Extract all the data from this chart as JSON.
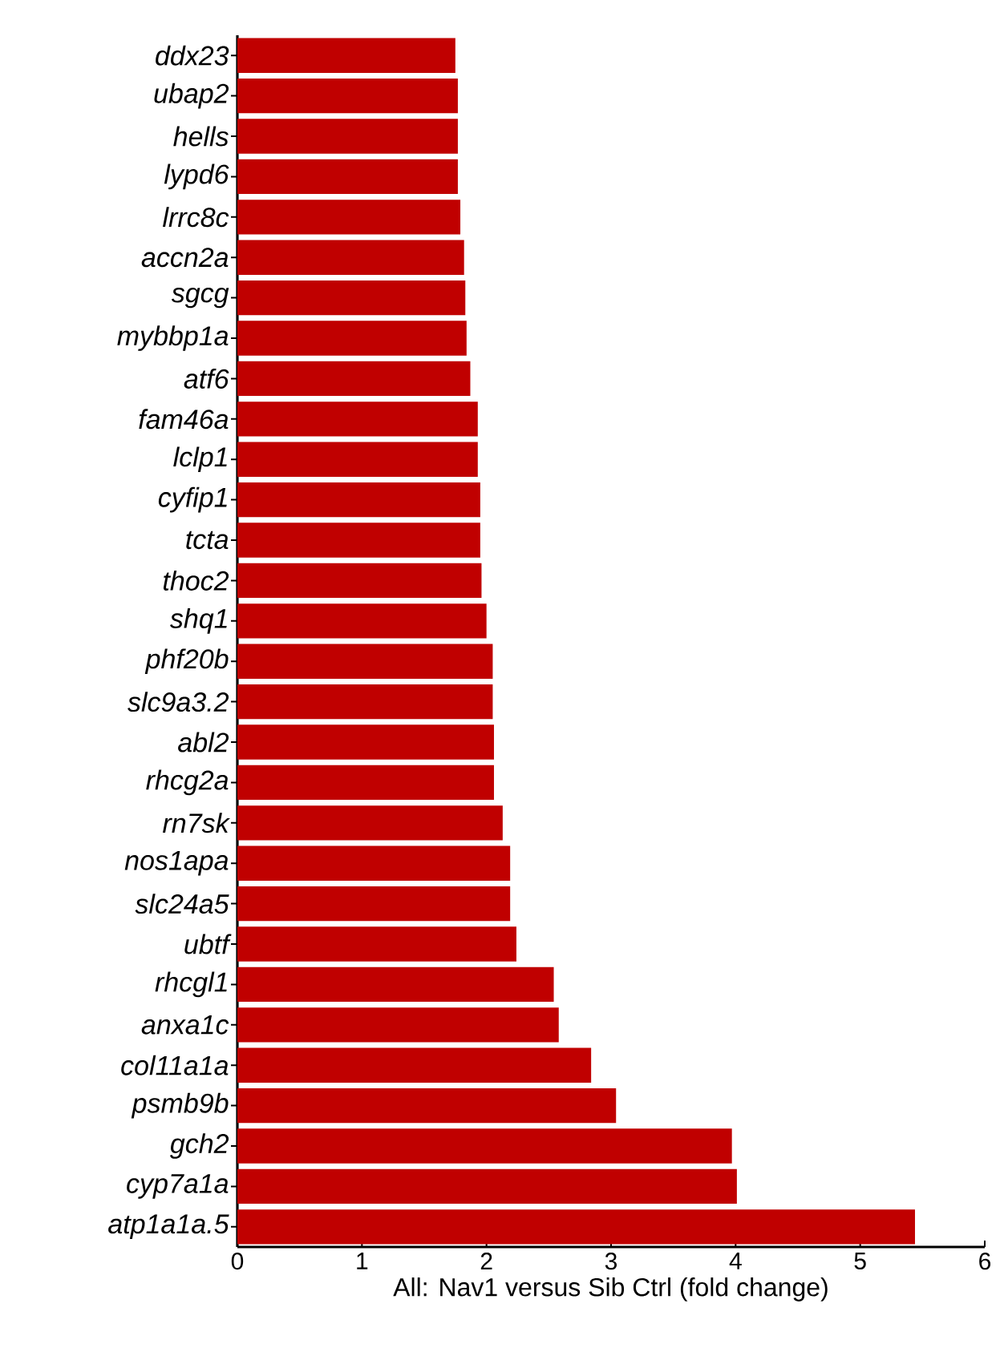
{
  "chart_data": {
    "type": "bar",
    "orientation": "horizontal",
    "xlabel": "All: Nav1 versus Sib Ctrl (fold change)",
    "categories": [
      "ddx23",
      "ubap2",
      "hells",
      "lypd6",
      "lrrc8c",
      "accn2a",
      "sgcg",
      "mybbp1a",
      "atf6",
      "fam46a",
      "lclp1",
      "cyfip1",
      "tcta",
      "thoc2",
      "shq1",
      "phf20b",
      "slc9a3.2",
      "abl2",
      "rhcg2a",
      "rn7sk",
      "nos1apa",
      "slc24a5",
      "ubtf",
      "rhcgl1",
      "anxa1c",
      "col11a1a",
      "psmb9b",
      "gch2",
      "cyp7a1a",
      "atp1a1a.5"
    ],
    "values": [
      1.75,
      1.77,
      1.77,
      1.77,
      1.79,
      1.82,
      1.83,
      1.84,
      1.87,
      1.93,
      1.93,
      1.95,
      1.95,
      1.96,
      2.0,
      2.05,
      2.05,
      2.06,
      2.06,
      2.13,
      2.19,
      2.19,
      2.24,
      2.54,
      2.58,
      2.84,
      3.04,
      3.97,
      4.01,
      5.44
    ],
    "color": "#c00000",
    "xlim": [
      0,
      6
    ],
    "xticks": [
      0,
      1,
      2,
      3,
      4,
      5,
      6
    ]
  }
}
